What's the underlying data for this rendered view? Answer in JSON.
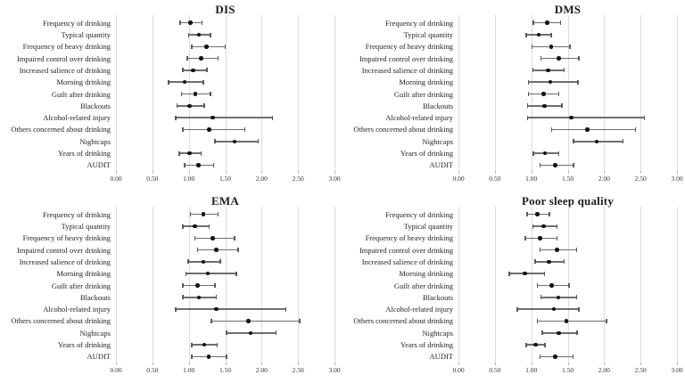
{
  "figure": {
    "background_color": "#ffffff",
    "text_color": "#1f1f1f",
    "gridline_color": "#dcdcdc",
    "ci_line_color": "#6e6e6e",
    "point_color": "#141414",
    "panel_titles": [
      "DIS",
      "DMS",
      "EMA",
      "Poor sleep quality"
    ]
  },
  "axis": {
    "tick_labels": [
      "0.00",
      "0.50",
      "1.00",
      "1.50",
      "2.00",
      "2.50",
      "3.00"
    ],
    "tick_values": [
      0,
      0.5,
      1,
      1.5,
      2,
      2.5,
      3
    ],
    "min": 0,
    "max": 3,
    "grid": true
  },
  "chart_data": [
    {
      "type": "scatter",
      "subtype": "forest-plot",
      "title": "DIS",
      "xlabel": "",
      "ylabel": "",
      "xlim": [
        0,
        3
      ],
      "xticks": [
        0,
        0.5,
        1,
        1.5,
        2,
        2.5,
        3
      ],
      "categories": [
        "Frequency of drinking",
        "Typical quantity",
        "Frequency of heavy drinking",
        "Impaired control over drinking",
        "Increased salience of drinking",
        "Morning drinking",
        "Guilt after drinking",
        "Blackouts",
        "Alcohol-related injury",
        "Others concerned about drinking",
        "Nightcaps",
        "Years of drinking",
        "AUDIT"
      ],
      "estimates": [
        1.02,
        1.14,
        1.24,
        1.17,
        1.06,
        0.94,
        1.09,
        1.01,
        1.33,
        1.28,
        1.63,
        1.01,
        1.13
      ],
      "ci_lower": [
        0.88,
        1.0,
        1.04,
        0.98,
        0.92,
        0.72,
        0.9,
        0.84,
        0.82,
        0.92,
        1.36,
        0.87,
        0.94
      ],
      "ci_upper": [
        1.18,
        1.3,
        1.5,
        1.4,
        1.25,
        1.2,
        1.3,
        1.21,
        2.15,
        1.77,
        1.95,
        1.17,
        1.34
      ]
    },
    {
      "type": "scatter",
      "subtype": "forest-plot",
      "title": "DMS",
      "xlabel": "",
      "ylabel": "",
      "xlim": [
        0,
        3
      ],
      "xticks": [
        0,
        0.5,
        1,
        1.5,
        2,
        2.5,
        3
      ],
      "categories": [
        "Frequency of drinking",
        "Typical quantity",
        "Frequency of heavy drinking",
        "Impaired control over drinking",
        "Increased salience of drinking",
        "Morning drinking",
        "Guilt after drinking",
        "Blackouts",
        "Alcohol-related injury",
        "Others concerned about drinking",
        "Nightcaps",
        "Years of drinking",
        "AUDIT"
      ],
      "estimates": [
        1.22,
        1.1,
        1.27,
        1.38,
        1.23,
        1.26,
        1.17,
        1.18,
        1.55,
        1.77,
        1.9,
        1.19,
        1.33
      ],
      "ci_lower": [
        1.03,
        0.93,
        1.01,
        1.13,
        1.02,
        0.96,
        0.96,
        0.95,
        0.95,
        1.28,
        1.58,
        1.03,
        1.12
      ],
      "ci_upper": [
        1.4,
        1.27,
        1.53,
        1.65,
        1.45,
        1.64,
        1.38,
        1.42,
        2.55,
        2.43,
        2.26,
        1.38,
        1.58
      ]
    },
    {
      "type": "scatter",
      "subtype": "forest-plot",
      "title": "EMA",
      "xlabel": "",
      "ylabel": "",
      "xlim": [
        0,
        3
      ],
      "xticks": [
        0,
        0.5,
        1,
        1.5,
        2,
        2.5,
        3
      ],
      "categories": [
        "Frequency of drinking",
        "Typical quantity",
        "Frequency of heavy drinking",
        "Impaired control over drinking",
        "Increased salience of drinking",
        "Morning drinking",
        "Guilt after drinking",
        "Blackouts",
        "Alcohol-related injury",
        "Others concerned about drinking",
        "Nightcaps",
        "Years of drinking",
        "AUDIT"
      ],
      "estimates": [
        1.2,
        1.08,
        1.33,
        1.38,
        1.2,
        1.26,
        1.12,
        1.14,
        1.38,
        1.82,
        1.85,
        1.21,
        1.27
      ],
      "ci_lower": [
        1.02,
        0.92,
        1.08,
        1.12,
        0.99,
        0.96,
        0.92,
        0.92,
        0.82,
        1.31,
        1.52,
        1.04,
        1.04
      ],
      "ci_upper": [
        1.4,
        1.28,
        1.63,
        1.68,
        1.43,
        1.65,
        1.36,
        1.38,
        2.33,
        2.52,
        2.2,
        1.39,
        1.52
      ]
    },
    {
      "type": "scatter",
      "subtype": "forest-plot",
      "title": "Poor sleep quality",
      "xlabel": "",
      "ylabel": "",
      "xlim": [
        0,
        3
      ],
      "xticks": [
        0,
        0.5,
        1,
        1.5,
        2,
        2.5,
        3
      ],
      "categories": [
        "Frequency of drinking",
        "Typical quantity",
        "Frequency of heavy drinking",
        "Impaired control over drinking",
        "Increased salience of drinking",
        "Morning drinking",
        "Guilt after drinking",
        "Blackouts",
        "Alcohol-related injury",
        "Others concerned about drinking",
        "Nightcaps",
        "Years of drinking",
        "AUDIT"
      ],
      "estimates": [
        1.08,
        1.17,
        1.12,
        1.35,
        1.24,
        0.91,
        1.28,
        1.37,
        1.31,
        1.48,
        1.38,
        1.06,
        1.33
      ],
      "ci_lower": [
        0.94,
        1.02,
        0.92,
        1.12,
        1.05,
        0.7,
        1.08,
        1.13,
        0.81,
        1.08,
        1.15,
        0.93,
        1.12
      ],
      "ci_upper": [
        1.25,
        1.35,
        1.35,
        1.62,
        1.45,
        1.18,
        1.52,
        1.62,
        1.65,
        2.03,
        1.63,
        1.19,
        1.57
      ]
    }
  ]
}
